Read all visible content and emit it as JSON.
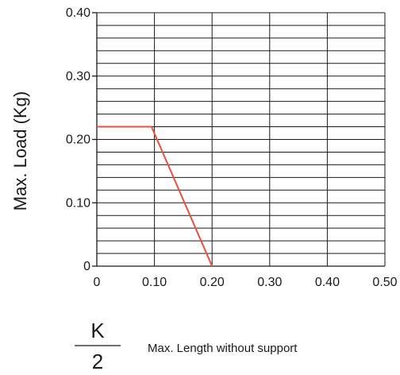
{
  "chart_data": {
    "type": "line",
    "ylabel": "Max. Load (Kg)",
    "xlabel": "Max. Length without support",
    "x_fraction": {
      "numerator": "K",
      "denominator": "2"
    },
    "xlim": [
      0,
      0.5
    ],
    "ylim": [
      0,
      0.4
    ],
    "x_ticks": [
      {
        "value": 0,
        "label": "0"
      },
      {
        "value": 0.1,
        "label": "0.10"
      },
      {
        "value": 0.2,
        "label": "0.20"
      },
      {
        "value": 0.3,
        "label": "0.30"
      },
      {
        "value": 0.4,
        "label": "0.40"
      },
      {
        "value": 0.5,
        "label": "0.50"
      }
    ],
    "y_ticks": [
      {
        "value": 0,
        "label": "0"
      },
      {
        "value": 0.1,
        "label": "0.10"
      },
      {
        "value": 0.2,
        "label": "0.20"
      },
      {
        "value": 0.3,
        "label": "0.30"
      },
      {
        "value": 0.4,
        "label": "0.40"
      }
    ],
    "grid": true,
    "series": [
      {
        "color": "#e8513a",
        "x": [
          0,
          0.095,
          0.2
        ],
        "y": [
          0.22,
          0.22,
          0
        ]
      }
    ]
  }
}
